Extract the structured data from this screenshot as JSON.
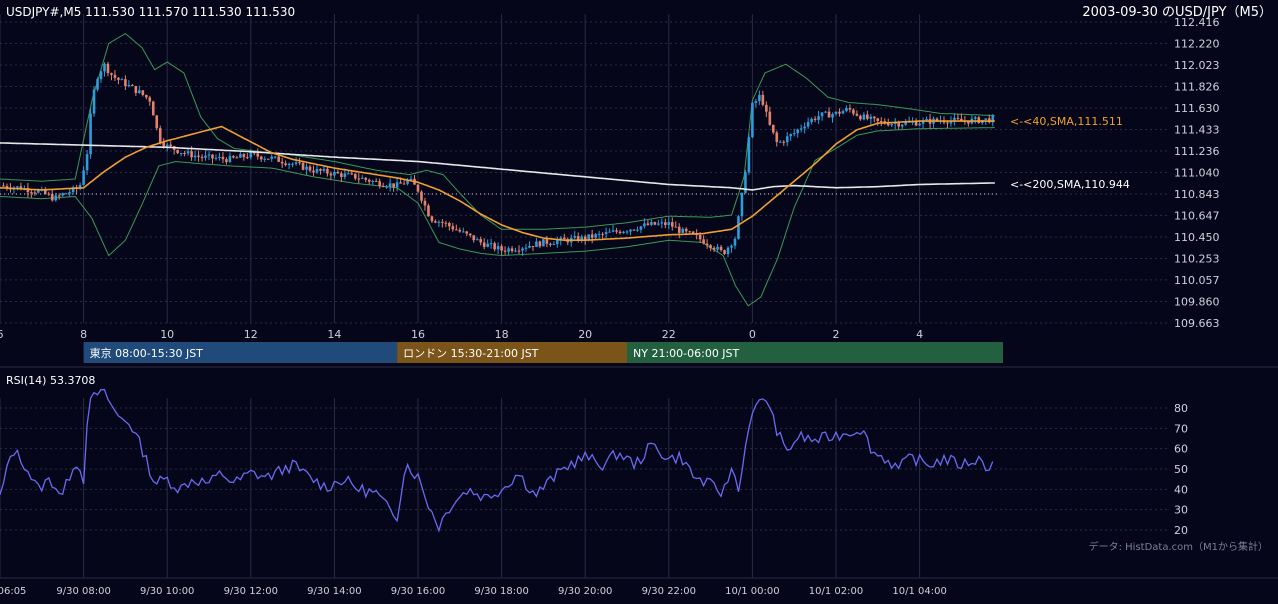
{
  "header": {
    "symbol_info": "USDJPY#,M5 111.530 111.570 111.530 111.530",
    "chart_title": "2003-09-30 のUSD/JPY（M5）"
  },
  "colors": {
    "background": "#05061a",
    "grid": "#2a2c44",
    "candle_up": "#2f9bdb",
    "candle_down": "#e3836e",
    "sma40": "#f0a030",
    "sma200": "#e8e8e8",
    "bollinger": "#3a9a55",
    "rsi": "#6a6af0",
    "session_tokyo": "#1f4a7a",
    "session_london": "#7a5418",
    "session_ny": "#236040"
  },
  "sessions": [
    {
      "label": "東京 08:00-15:30 JST",
      "start_hour": 8.0,
      "end_hour": 15.5
    },
    {
      "label": "ロンドン 15:30-21:00 JST",
      "start_hour": 15.5,
      "end_hour": 21.0
    },
    {
      "label": "NY 21:00-06:00 JST",
      "start_hour": 21.0,
      "end_hour": 30.0
    }
  ],
  "annotations": {
    "sma40_label": "<-<40,SMA,111.511",
    "sma200_label": "<-<200,SMA,110.944"
  },
  "rsi": {
    "label": "RSI(14) 53.3708",
    "ticks": [
      "80",
      "70",
      "60",
      "50",
      "40",
      "30",
      "20"
    ]
  },
  "source_note": "データ: HistData.com（M1から集計）",
  "chart_data": [
    {
      "type": "candlestick",
      "title": "2003-09-30 のUSD/JPY（M5）",
      "x_unit": "hours since 2003-09-30 00:00 JST",
      "x_range": [
        6.0,
        30.0
      ],
      "ylim": [
        109.663,
        112.416
      ],
      "y_ticks": [
        "112.416",
        "112.220",
        "112.023",
        "111.826",
        "111.630",
        "111.433",
        "111.236",
        "111.040",
        "110.843",
        "110.647",
        "110.450",
        "110.253",
        "110.057",
        "109.860",
        "109.663"
      ],
      "x_tick_labels": [
        {
          "hour": 6,
          "label": "6"
        },
        {
          "hour": 8,
          "label": "8"
        },
        {
          "hour": 10,
          "label": "10"
        },
        {
          "hour": 12,
          "label": "12"
        },
        {
          "hour": 14,
          "label": "14"
        },
        {
          "hour": 16,
          "label": "16"
        },
        {
          "hour": 18,
          "label": "18"
        },
        {
          "hour": 20,
          "label": "20"
        },
        {
          "hour": 22,
          "label": "22"
        },
        {
          "hour": 24,
          "label": "0"
        },
        {
          "hour": 26,
          "label": "2"
        },
        {
          "hour": 28,
          "label": "4"
        }
      ],
      "close_anchors": [
        [
          6.0,
          110.92
        ],
        [
          6.5,
          110.9
        ],
        [
          7.0,
          110.86
        ],
        [
          7.3,
          110.8
        ],
        [
          7.5,
          110.84
        ],
        [
          7.9,
          110.9
        ],
        [
          8.1,
          111.25
        ],
        [
          8.2,
          111.7
        ],
        [
          8.35,
          111.95
        ],
        [
          8.5,
          112.02
        ],
        [
          8.7,
          111.92
        ],
        [
          9.0,
          111.85
        ],
        [
          9.3,
          111.78
        ],
        [
          9.6,
          111.7
        ],
        [
          9.8,
          111.35
        ],
        [
          10.0,
          111.28
        ],
        [
          10.4,
          111.22
        ],
        [
          10.8,
          111.18
        ],
        [
          11.5,
          111.16
        ],
        [
          12.0,
          111.2
        ],
        [
          12.5,
          111.17
        ],
        [
          13.0,
          111.12
        ],
        [
          13.5,
          111.06
        ],
        [
          14.0,
          111.03
        ],
        [
          14.5,
          111.0
        ],
        [
          15.0,
          110.95
        ],
        [
          15.5,
          110.92
        ],
        [
          15.8,
          110.97
        ],
        [
          16.0,
          110.88
        ],
        [
          16.3,
          110.62
        ],
        [
          16.6,
          110.58
        ],
        [
          17.0,
          110.5
        ],
        [
          17.5,
          110.4
        ],
        [
          18.0,
          110.33
        ],
        [
          18.5,
          110.36
        ],
        [
          19.0,
          110.4
        ],
        [
          19.5,
          110.42
        ],
        [
          20.0,
          110.44
        ],
        [
          20.5,
          110.48
        ],
        [
          21.0,
          110.52
        ],
        [
          21.5,
          110.56
        ],
        [
          22.0,
          110.57
        ],
        [
          22.3,
          110.5
        ],
        [
          22.6,
          110.46
        ],
        [
          23.0,
          110.38
        ],
        [
          23.3,
          110.3
        ],
        [
          23.6,
          110.45
        ],
        [
          23.8,
          110.95
        ],
        [
          24.0,
          111.65
        ],
        [
          24.2,
          111.75
        ],
        [
          24.4,
          111.48
        ],
        [
          24.6,
          111.3
        ],
        [
          25.0,
          111.4
        ],
        [
          25.3,
          111.5
        ],
        [
          25.6,
          111.56
        ],
        [
          26.0,
          111.58
        ],
        [
          26.3,
          111.62
        ],
        [
          26.6,
          111.55
        ],
        [
          27.0,
          111.5
        ],
        [
          27.5,
          111.49
        ],
        [
          28.0,
          111.5
        ],
        [
          28.5,
          111.52
        ],
        [
          29.0,
          111.51
        ],
        [
          29.5,
          111.52
        ],
        [
          29.8,
          111.53
        ]
      ],
      "sma40_anchors": [
        [
          6.0,
          110.9
        ],
        [
          7.0,
          110.88
        ],
        [
          8.0,
          110.9
        ],
        [
          8.5,
          111.05
        ],
        [
          9.0,
          111.18
        ],
        [
          9.5,
          111.27
        ],
        [
          10.0,
          111.33
        ],
        [
          10.5,
          111.38
        ],
        [
          11.0,
          111.43
        ],
        [
          11.3,
          111.46
        ],
        [
          11.6,
          111.4
        ],
        [
          12.0,
          111.32
        ],
        [
          12.5,
          111.22
        ],
        [
          13.0,
          111.16
        ],
        [
          13.5,
          111.12
        ],
        [
          14.0,
          111.08
        ],
        [
          14.5,
          111.05
        ],
        [
          15.0,
          111.02
        ],
        [
          15.5,
          110.99
        ],
        [
          16.0,
          110.95
        ],
        [
          16.5,
          110.88
        ],
        [
          17.0,
          110.78
        ],
        [
          17.5,
          110.66
        ],
        [
          18.0,
          110.56
        ],
        [
          18.5,
          110.49
        ],
        [
          19.0,
          110.44
        ],
        [
          19.5,
          110.42
        ],
        [
          20.0,
          110.42
        ],
        [
          21.0,
          110.44
        ],
        [
          22.0,
          110.47
        ],
        [
          22.8,
          110.48
        ],
        [
          23.5,
          110.52
        ],
        [
          24.0,
          110.64
        ],
        [
          24.5,
          110.8
        ],
        [
          25.0,
          110.96
        ],
        [
          25.5,
          111.12
        ],
        [
          26.0,
          111.3
        ],
        [
          26.5,
          111.43
        ],
        [
          27.0,
          111.49
        ],
        [
          28.0,
          111.51
        ],
        [
          29.0,
          111.51
        ],
        [
          29.8,
          111.51
        ]
      ],
      "sma200_anchors": [
        [
          6.0,
          111.31
        ],
        [
          8.0,
          111.29
        ],
        [
          10.0,
          111.27
        ],
        [
          12.0,
          111.23
        ],
        [
          14.0,
          111.18
        ],
        [
          16.0,
          111.14
        ],
        [
          18.0,
          111.07
        ],
        [
          20.0,
          111.0
        ],
        [
          22.0,
          110.93
        ],
        [
          23.5,
          110.9
        ],
        [
          24.0,
          110.88
        ],
        [
          24.5,
          110.91
        ],
        [
          25.0,
          110.92
        ],
        [
          26.0,
          110.9
        ],
        [
          27.0,
          110.91
        ],
        [
          28.0,
          110.93
        ],
        [
          29.8,
          110.944
        ]
      ],
      "bollinger_upper_anchors": [
        [
          6.0,
          110.98
        ],
        [
          7.0,
          110.96
        ],
        [
          7.8,
          110.98
        ],
        [
          8.2,
          111.7
        ],
        [
          8.6,
          112.22
        ],
        [
          9.0,
          112.31
        ],
        [
          9.4,
          112.18
        ],
        [
          9.7,
          111.98
        ],
        [
          10.0,
          112.05
        ],
        [
          10.4,
          111.95
        ],
        [
          10.8,
          111.55
        ],
        [
          11.2,
          111.35
        ],
        [
          11.6,
          111.26
        ],
        [
          12.0,
          111.24
        ],
        [
          13.0,
          111.2
        ],
        [
          14.0,
          111.14
        ],
        [
          15.0,
          111.06
        ],
        [
          15.8,
          111.02
        ],
        [
          16.2,
          111.06
        ],
        [
          16.6,
          111.02
        ],
        [
          17.0,
          110.85
        ],
        [
          17.5,
          110.65
        ],
        [
          18.0,
          110.52
        ],
        [
          19.0,
          110.52
        ],
        [
          20.0,
          110.54
        ],
        [
          21.0,
          110.58
        ],
        [
          22.0,
          110.64
        ],
        [
          23.0,
          110.63
        ],
        [
          23.5,
          110.65
        ],
        [
          23.8,
          111.0
        ],
        [
          24.0,
          111.7
        ],
        [
          24.3,
          111.95
        ],
        [
          24.8,
          112.03
        ],
        [
          25.3,
          111.9
        ],
        [
          25.8,
          111.73
        ],
        [
          26.3,
          111.68
        ],
        [
          27.0,
          111.66
        ],
        [
          27.8,
          111.62
        ],
        [
          28.5,
          111.58
        ],
        [
          29.8,
          111.56
        ]
      ],
      "bollinger_lower_anchors": [
        [
          6.0,
          110.82
        ],
        [
          7.0,
          110.8
        ],
        [
          7.8,
          110.82
        ],
        [
          8.2,
          110.62
        ],
        [
          8.6,
          110.28
        ],
        [
          9.0,
          110.42
        ],
        [
          9.4,
          110.75
        ],
        [
          9.8,
          111.1
        ],
        [
          10.2,
          111.14
        ],
        [
          10.8,
          111.12
        ],
        [
          11.5,
          111.1
        ],
        [
          12.5,
          111.08
        ],
        [
          13.5,
          111.0
        ],
        [
          14.5,
          110.94
        ],
        [
          15.5,
          110.9
        ],
        [
          16.0,
          110.76
        ],
        [
          16.5,
          110.4
        ],
        [
          17.0,
          110.34
        ],
        [
          17.5,
          110.3
        ],
        [
          18.0,
          110.28
        ],
        [
          19.0,
          110.3
        ],
        [
          20.0,
          110.32
        ],
        [
          21.0,
          110.36
        ],
        [
          22.0,
          110.42
        ],
        [
          22.8,
          110.4
        ],
        [
          23.3,
          110.28
        ],
        [
          23.6,
          110.0
        ],
        [
          23.9,
          109.82
        ],
        [
          24.2,
          109.9
        ],
        [
          24.6,
          110.25
        ],
        [
          25.0,
          110.72
        ],
        [
          25.5,
          111.15
        ],
        [
          26.0,
          111.26
        ],
        [
          26.5,
          111.38
        ],
        [
          27.0,
          111.42
        ],
        [
          28.0,
          111.44
        ],
        [
          29.8,
          111.45
        ]
      ],
      "reference_line_price": 110.843
    },
    {
      "type": "line",
      "name": "RSI(14)",
      "x_unit": "hours since 2003-09-30 00:00 JST",
      "ylim": [
        15,
        92
      ],
      "y_ticks": [
        80,
        70,
        60,
        50,
        40,
        30,
        20
      ],
      "x_tick_labels": [
        "06:05",
        "9/30 08:00",
        "9/30 10:00",
        "9/30 12:00",
        "9/30 14:00",
        "9/30 16:00",
        "9/30 18:00",
        "9/30 20:00",
        "9/30 22:00",
        "10/1 00:00",
        "10/1 02:00",
        "10/1 04:00"
      ],
      "x_tick_hours": [
        6.0,
        8,
        10,
        12,
        14,
        16,
        18,
        20,
        22,
        24,
        26,
        28
      ],
      "anchors": [
        [
          6.0,
          36
        ],
        [
          6.3,
          60
        ],
        [
          6.6,
          52
        ],
        [
          6.9,
          40
        ],
        [
          7.2,
          45
        ],
        [
          7.5,
          37
        ],
        [
          7.8,
          55
        ],
        [
          8.0,
          45
        ],
        [
          8.1,
          80
        ],
        [
          8.3,
          87
        ],
        [
          8.5,
          88
        ],
        [
          8.8,
          76
        ],
        [
          9.1,
          73
        ],
        [
          9.4,
          60
        ],
        [
          9.7,
          43
        ],
        [
          10.0,
          45
        ],
        [
          10.3,
          40
        ],
        [
          10.6,
          45
        ],
        [
          11.0,
          43
        ],
        [
          11.3,
          48
        ],
        [
          11.6,
          43
        ],
        [
          12.0,
          48
        ],
        [
          12.4,
          46
        ],
        [
          12.7,
          49
        ],
        [
          13.0,
          52
        ],
        [
          13.4,
          46
        ],
        [
          13.8,
          41
        ],
        [
          14.2,
          45
        ],
        [
          14.6,
          40
        ],
        [
          15.0,
          38
        ],
        [
          15.3,
          30
        ],
        [
          15.5,
          27
        ],
        [
          15.7,
          53
        ],
        [
          16.0,
          46
        ],
        [
          16.3,
          30
        ],
        [
          16.5,
          22
        ],
        [
          16.8,
          33
        ],
        [
          17.2,
          40
        ],
        [
          17.6,
          36
        ],
        [
          18.0,
          40
        ],
        [
          18.4,
          48
        ],
        [
          18.8,
          37
        ],
        [
          19.2,
          45
        ],
        [
          19.6,
          52
        ],
        [
          20.0,
          56
        ],
        [
          20.4,
          52
        ],
        [
          20.8,
          58
        ],
        [
          21.2,
          52
        ],
        [
          21.6,
          62
        ],
        [
          22.0,
          55
        ],
        [
          22.3,
          56
        ],
        [
          22.6,
          46
        ],
        [
          23.0,
          42
        ],
        [
          23.3,
          38
        ],
        [
          23.5,
          50
        ],
        [
          23.7,
          40
        ],
        [
          23.9,
          72
        ],
        [
          24.1,
          80
        ],
        [
          24.3,
          87
        ],
        [
          24.5,
          74
        ],
        [
          24.8,
          58
        ],
        [
          25.1,
          66
        ],
        [
          25.5,
          64
        ],
        [
          25.9,
          66
        ],
        [
          26.3,
          68
        ],
        [
          26.6,
          70
        ],
        [
          26.9,
          58
        ],
        [
          27.2,
          55
        ],
        [
          27.5,
          50
        ],
        [
          27.8,
          56
        ],
        [
          28.2,
          52
        ],
        [
          28.6,
          55
        ],
        [
          29.0,
          52
        ],
        [
          29.4,
          55
        ],
        [
          29.6,
          51
        ],
        [
          29.8,
          53.37
        ]
      ]
    }
  ]
}
